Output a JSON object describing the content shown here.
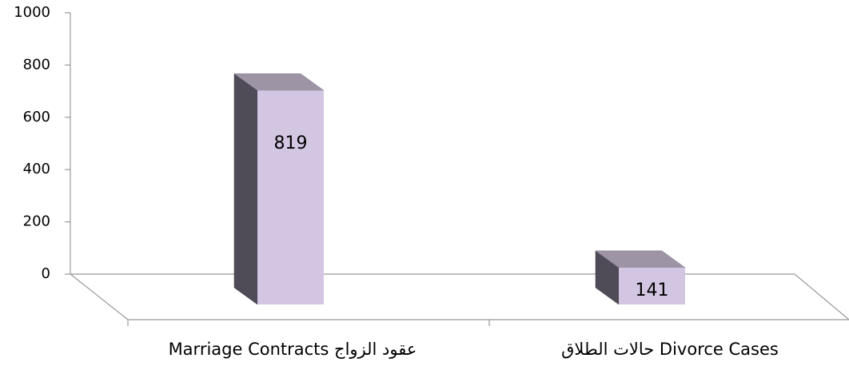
{
  "chart_data": {
    "type": "bar3d",
    "categories": [
      "Marriage Contracts عقود الزواج",
      "حالات الطلاق Divorce Cases"
    ],
    "values": [
      819,
      141
    ],
    "color": "#d3c6e2",
    "ylim": [
      0,
      1000
    ],
    "yticks": [
      0,
      200,
      400,
      600,
      800,
      1000
    ]
  }
}
